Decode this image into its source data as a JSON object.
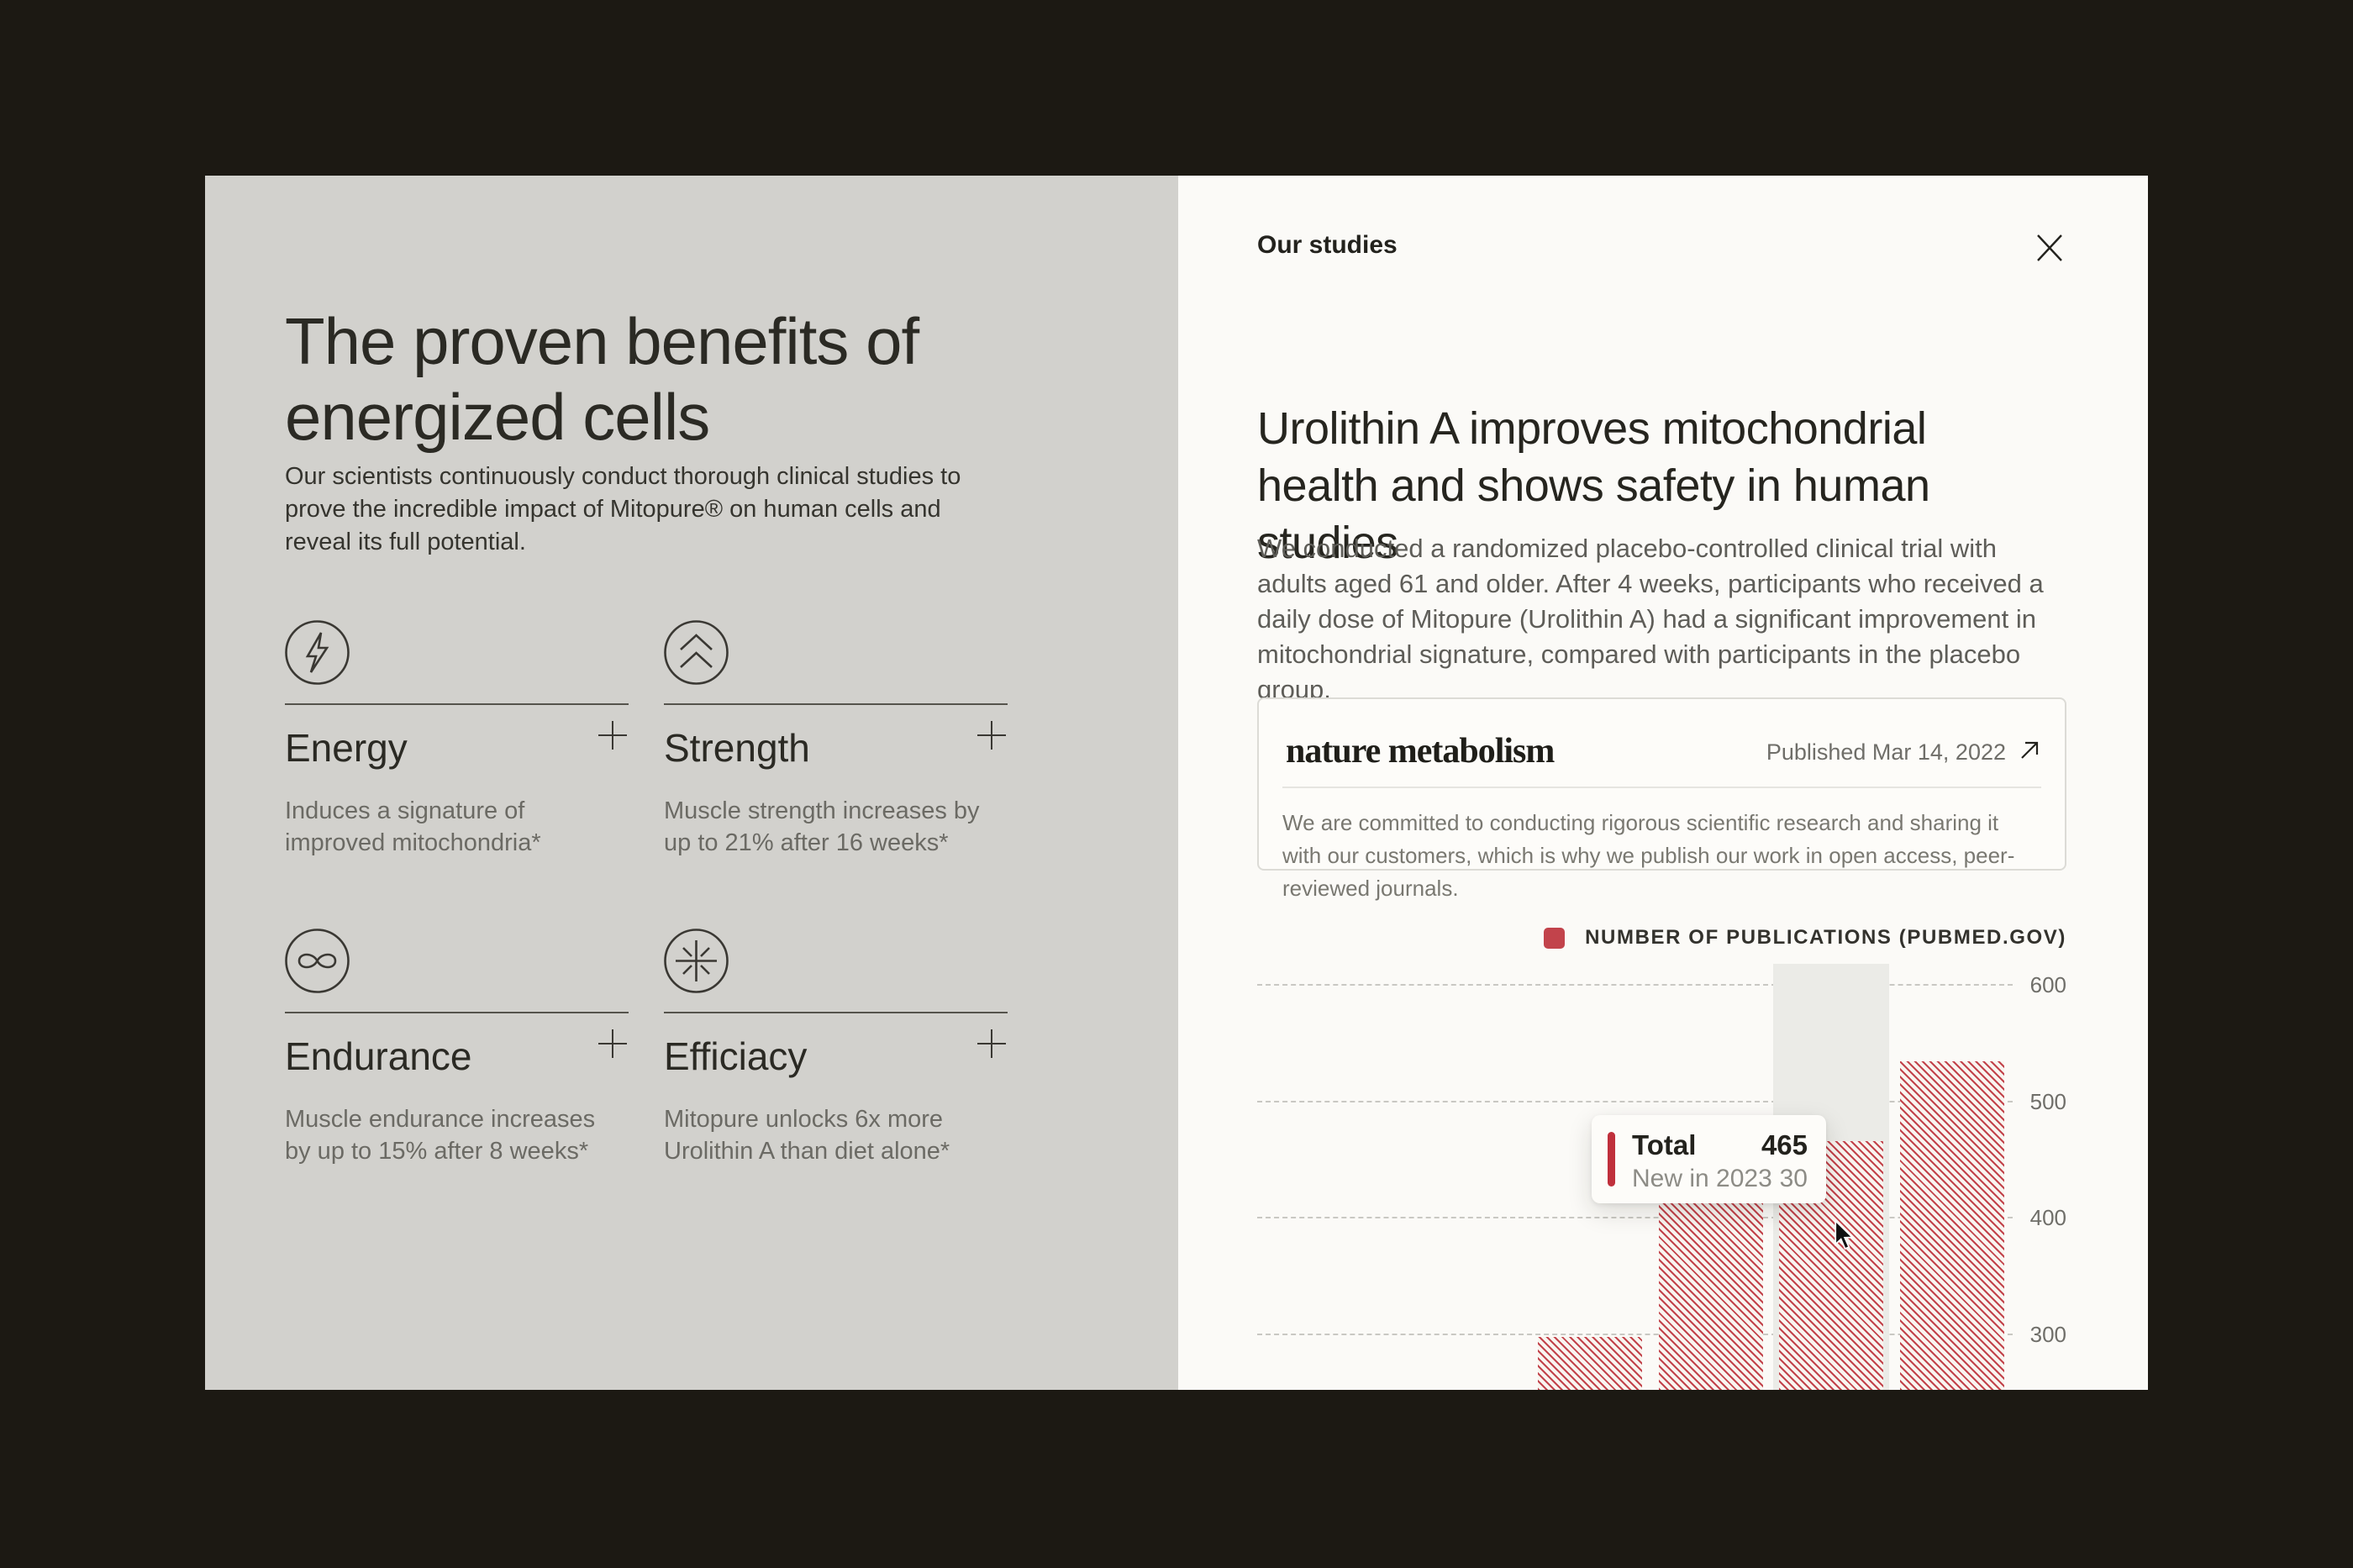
{
  "theme": {
    "page_background": "#1c1913",
    "left_panel_background": "#d2d1cd",
    "right_panel_background": "#fbfaf7",
    "accent_red": "#c2434b",
    "dark_text": "#26251f",
    "muted_text": "#6b6a64"
  },
  "left_panel": {
    "title": "The proven benefits of energized cells",
    "paragraph": "Our scientists continuously conduct thorough clinical studies to prove the incredible impact of Mitopure® on human cells and reveal its full potential.",
    "benefits": [
      {
        "name": "Energy",
        "icon": "lightning-bolt",
        "description": "Induces a signature of improved mitochondria*"
      },
      {
        "name": "Strength",
        "icon": "double-chevron-up",
        "description": "Muscle strength increases by up to 21% after 16 weeks*"
      },
      {
        "name": "Endurance",
        "icon": "infinity",
        "description": "Muscle endurance increases by up to 15% after 8 weeks*"
      },
      {
        "name": "Efficiacy",
        "icon": "starburst",
        "description": "Mitopure unlocks 6x more Urolithin A than diet alone*"
      }
    ]
  },
  "right_panel": {
    "header": "Our studies",
    "heading": "Urolithin A improves mitochondrial health and shows safety in human studies",
    "paragraph": "We conducted a randomized placebo-controlled clinical trial with adults aged 61 and older. After 4 weeks, participants who received a daily dose of Mitopure (Urolithin A) had a significant improvement in mitochondrial signature, compared with participants in the placebo group.",
    "study_card": {
      "journal": "nature metabolism",
      "published": "Published Mar 14, 2022",
      "body": "We are committed to conducting rigorous scientific research and sharing it with our customers, which is why we publish our work in open access, peer-reviewed journals."
    }
  },
  "chart_data": {
    "type": "bar",
    "legend_label": "NUMBER OF PUBLICATIONS (PUBMED.GOV)",
    "values": [
      297,
      412,
      465,
      534
    ],
    "categories": [
      "",
      "",
      "",
      ""
    ],
    "yticks": [
      300,
      400,
      500,
      600
    ],
    "ylim": [
      252,
      622
    ],
    "grid": "horizontal-dashed",
    "legend_position": "top-right",
    "bar_color": "#c2434b",
    "bar_style": "diagonal-hatch",
    "hovered_bar_index": 2,
    "tooltip": {
      "label": "Total",
      "value": "465",
      "sublabel": "New in 2023",
      "subvalue": "30"
    }
  }
}
